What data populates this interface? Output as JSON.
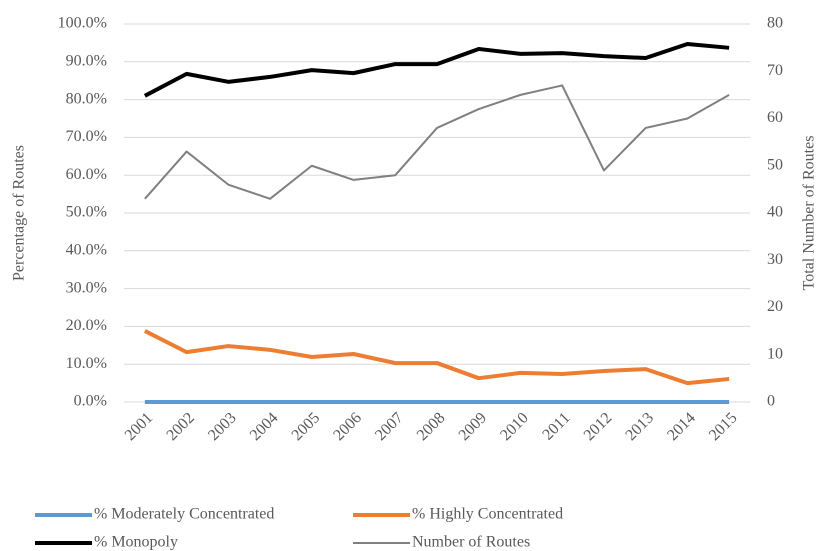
{
  "chart_data": {
    "type": "line",
    "x": [
      "2001",
      "2002",
      "2003",
      "2004",
      "2005",
      "2006",
      "2007",
      "2008",
      "2009",
      "2010",
      "2011",
      "2012",
      "2013",
      "2014",
      "2015"
    ],
    "series": [
      {
        "name": "% Moderately Concentrated",
        "color": "#5b9bd5",
        "width": 4,
        "values": [
          0,
          0,
          0,
          0,
          0,
          0,
          0,
          0,
          0,
          0,
          0,
          0,
          0,
          0,
          0
        ]
      },
      {
        "name": "% Highly Concentrated",
        "color": "#ed7d31",
        "width": 4,
        "values": [
          18.8,
          13.2,
          14.8,
          13.8,
          11.9,
          12.7,
          10.3,
          10.3,
          6.3,
          7.7,
          7.4,
          8.2,
          8.7,
          5.0,
          6.1
        ]
      },
      {
        "name": "% Monopoly",
        "color": "#000000",
        "width": 4,
        "values": [
          81.0,
          86.8,
          84.7,
          86.0,
          87.8,
          87.0,
          89.4,
          89.4,
          93.4,
          92.1,
          92.3,
          91.5,
          91.0,
          94.7,
          93.7
        ]
      },
      {
        "name": "Number of Routes",
        "color": "#808080",
        "width": 2,
        "axis": "y2",
        "values": [
          43,
          53,
          46,
          43,
          50,
          47,
          48,
          58,
          62,
          65,
          67,
          49,
          58,
          60,
          65
        ]
      }
    ],
    "y_label": "Percentage of Routes",
    "y2_label": "Total Number of Routes",
    "ylim": [
      0,
      100
    ],
    "yticks": [
      {
        "value": 0,
        "label": "0.0%"
      },
      {
        "value": 10,
        "label": "10.0%"
      },
      {
        "value": 20,
        "label": "20.0%"
      },
      {
        "value": 30,
        "label": "30.0%"
      },
      {
        "value": 40,
        "label": "40.0%"
      },
      {
        "value": 50,
        "label": "50.0%"
      },
      {
        "value": 60,
        "label": "60.0%"
      },
      {
        "value": 70,
        "label": "70.0%"
      },
      {
        "value": 80,
        "label": "80.0%"
      },
      {
        "value": 90,
        "label": "90.0%"
      },
      {
        "value": 100,
        "label": "100.0%"
      }
    ],
    "y2lim": [
      0,
      80
    ],
    "y2ticks": [
      0,
      10,
      20,
      30,
      40,
      50,
      60,
      70,
      80
    ],
    "grid": true,
    "legend": "bottom"
  }
}
